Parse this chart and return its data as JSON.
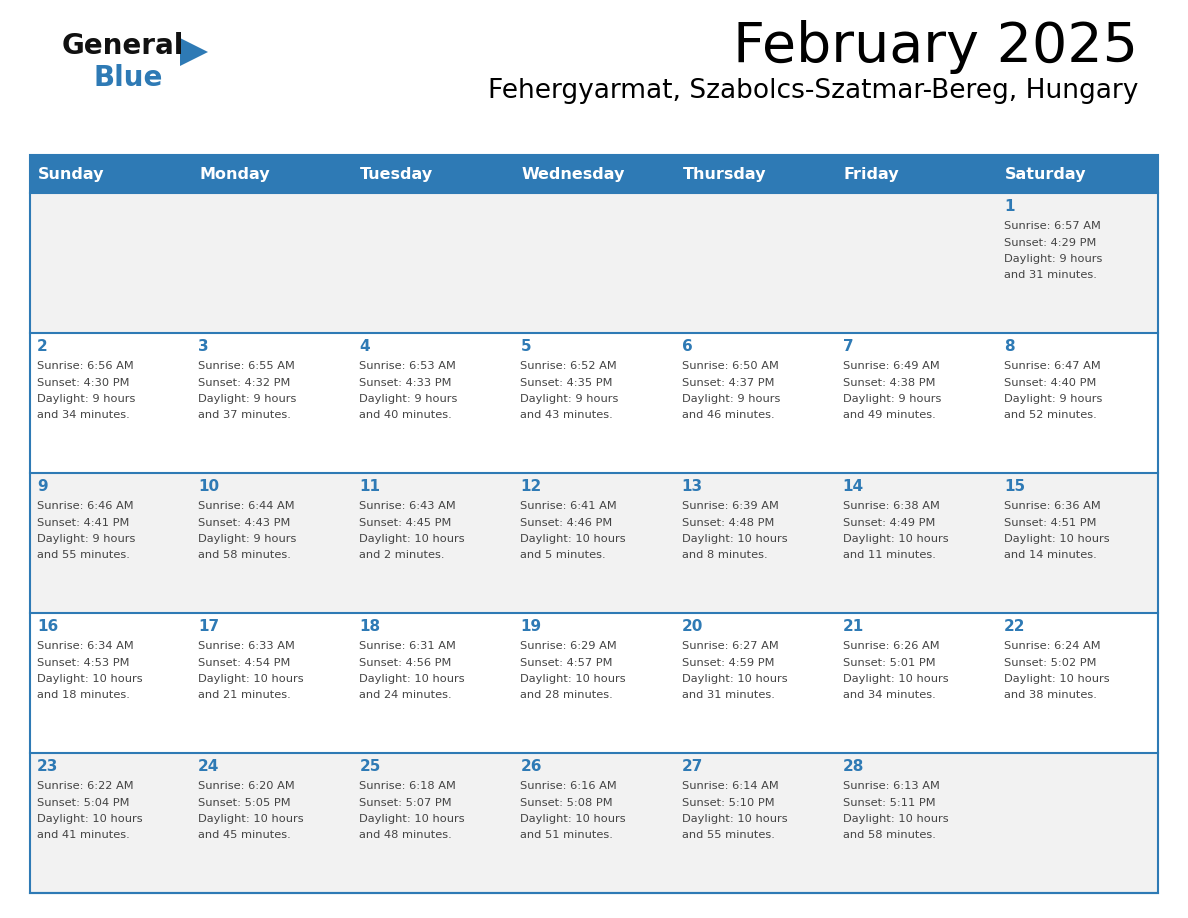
{
  "title": "February 2025",
  "subtitle": "Fehergyarmat, Szabolcs-Szatmar-Bereg, Hungary",
  "days_of_week": [
    "Sunday",
    "Monday",
    "Tuesday",
    "Wednesday",
    "Thursday",
    "Friday",
    "Saturday"
  ],
  "header_bg": "#2E7AB5",
  "header_text": "#FFFFFF",
  "row_bg_odd": "#F2F2F2",
  "row_bg_even": "#FFFFFF",
  "cell_border": "#2E7AB5",
  "day_num_color": "#2E7AB5",
  "text_color": "#444444",
  "logo_general_color": "#111111",
  "logo_blue_color": "#2E7AB5",
  "calendar_data": [
    [
      {
        "day": "",
        "sunrise": "",
        "sunset": "",
        "daylight": ""
      },
      {
        "day": "",
        "sunrise": "",
        "sunset": "",
        "daylight": ""
      },
      {
        "day": "",
        "sunrise": "",
        "sunset": "",
        "daylight": ""
      },
      {
        "day": "",
        "sunrise": "",
        "sunset": "",
        "daylight": ""
      },
      {
        "day": "",
        "sunrise": "",
        "sunset": "",
        "daylight": ""
      },
      {
        "day": "",
        "sunrise": "",
        "sunset": "",
        "daylight": ""
      },
      {
        "day": "1",
        "sunrise": "6:57 AM",
        "sunset": "4:29 PM",
        "daylight": "9 hours and 31 minutes."
      }
    ],
    [
      {
        "day": "2",
        "sunrise": "6:56 AM",
        "sunset": "4:30 PM",
        "daylight": "9 hours and 34 minutes."
      },
      {
        "day": "3",
        "sunrise": "6:55 AM",
        "sunset": "4:32 PM",
        "daylight": "9 hours and 37 minutes."
      },
      {
        "day": "4",
        "sunrise": "6:53 AM",
        "sunset": "4:33 PM",
        "daylight": "9 hours and 40 minutes."
      },
      {
        "day": "5",
        "sunrise": "6:52 AM",
        "sunset": "4:35 PM",
        "daylight": "9 hours and 43 minutes."
      },
      {
        "day": "6",
        "sunrise": "6:50 AM",
        "sunset": "4:37 PM",
        "daylight": "9 hours and 46 minutes."
      },
      {
        "day": "7",
        "sunrise": "6:49 AM",
        "sunset": "4:38 PM",
        "daylight": "9 hours and 49 minutes."
      },
      {
        "day": "8",
        "sunrise": "6:47 AM",
        "sunset": "4:40 PM",
        "daylight": "9 hours and 52 minutes."
      }
    ],
    [
      {
        "day": "9",
        "sunrise": "6:46 AM",
        "sunset": "4:41 PM",
        "daylight": "9 hours and 55 minutes."
      },
      {
        "day": "10",
        "sunrise": "6:44 AM",
        "sunset": "4:43 PM",
        "daylight": "9 hours and 58 minutes."
      },
      {
        "day": "11",
        "sunrise": "6:43 AM",
        "sunset": "4:45 PM",
        "daylight": "10 hours and 2 minutes."
      },
      {
        "day": "12",
        "sunrise": "6:41 AM",
        "sunset": "4:46 PM",
        "daylight": "10 hours and 5 minutes."
      },
      {
        "day": "13",
        "sunrise": "6:39 AM",
        "sunset": "4:48 PM",
        "daylight": "10 hours and 8 minutes."
      },
      {
        "day": "14",
        "sunrise": "6:38 AM",
        "sunset": "4:49 PM",
        "daylight": "10 hours and 11 minutes."
      },
      {
        "day": "15",
        "sunrise": "6:36 AM",
        "sunset": "4:51 PM",
        "daylight": "10 hours and 14 minutes."
      }
    ],
    [
      {
        "day": "16",
        "sunrise": "6:34 AM",
        "sunset": "4:53 PM",
        "daylight": "10 hours and 18 minutes."
      },
      {
        "day": "17",
        "sunrise": "6:33 AM",
        "sunset": "4:54 PM",
        "daylight": "10 hours and 21 minutes."
      },
      {
        "day": "18",
        "sunrise": "6:31 AM",
        "sunset": "4:56 PM",
        "daylight": "10 hours and 24 minutes."
      },
      {
        "day": "19",
        "sunrise": "6:29 AM",
        "sunset": "4:57 PM",
        "daylight": "10 hours and 28 minutes."
      },
      {
        "day": "20",
        "sunrise": "6:27 AM",
        "sunset": "4:59 PM",
        "daylight": "10 hours and 31 minutes."
      },
      {
        "day": "21",
        "sunrise": "6:26 AM",
        "sunset": "5:01 PM",
        "daylight": "10 hours and 34 minutes."
      },
      {
        "day": "22",
        "sunrise": "6:24 AM",
        "sunset": "5:02 PM",
        "daylight": "10 hours and 38 minutes."
      }
    ],
    [
      {
        "day": "23",
        "sunrise": "6:22 AM",
        "sunset": "5:04 PM",
        "daylight": "10 hours and 41 minutes."
      },
      {
        "day": "24",
        "sunrise": "6:20 AM",
        "sunset": "5:05 PM",
        "daylight": "10 hours and 45 minutes."
      },
      {
        "day": "25",
        "sunrise": "6:18 AM",
        "sunset": "5:07 PM",
        "daylight": "10 hours and 48 minutes."
      },
      {
        "day": "26",
        "sunrise": "6:16 AM",
        "sunset": "5:08 PM",
        "daylight": "10 hours and 51 minutes."
      },
      {
        "day": "27",
        "sunrise": "6:14 AM",
        "sunset": "5:10 PM",
        "daylight": "10 hours and 55 minutes."
      },
      {
        "day": "28",
        "sunrise": "6:13 AM",
        "sunset": "5:11 PM",
        "daylight": "10 hours and 58 minutes."
      },
      {
        "day": "",
        "sunrise": "",
        "sunset": "",
        "daylight": ""
      }
    ]
  ]
}
